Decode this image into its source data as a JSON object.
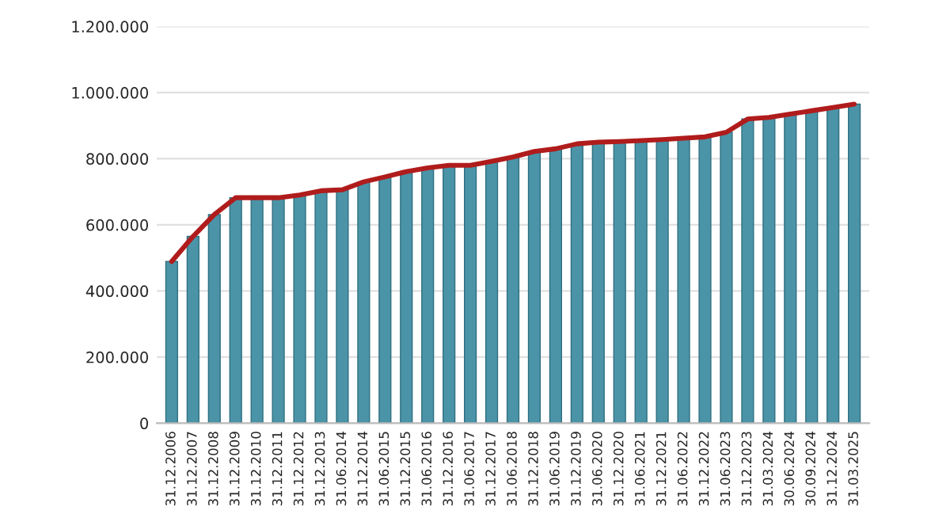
{
  "chart_data": {
    "type": "bar",
    "categories": [
      "31.12.2006",
      "31.12.2007",
      "31.12.2008",
      "31.12.2009",
      "31.12.2010",
      "31.12.2011",
      "31.12.2012",
      "31.12.2013",
      "31.06.2014",
      "31.12.2014",
      "31.06.2015",
      "31.12.2015",
      "31.06.2016",
      "31.12.2016",
      "31.06.2017",
      "31.12.2017",
      "31.06.2018",
      "31.12.2018",
      "31.06.2019",
      "31.12.2019",
      "31.06.2020",
      "31.12.2020",
      "31.06.2021",
      "31.12.2021",
      "31.06.2022",
      "31.12.2022",
      "31.06.2023",
      "31.12.2023",
      "31.03.2024",
      "30.06.2024",
      "30.09.2024",
      "31.12.2024",
      "31.03.2025"
    ],
    "series": [
      {
        "color": "#4b94a8",
        "values": [
          489000,
          565000,
          631000,
          682000,
          682000,
          682000,
          690000,
          703000,
          706000,
          730000,
          745000,
          761000,
          772000,
          780000,
          780000,
          792000,
          805000,
          822000,
          830000,
          845000,
          850000,
          852000,
          855000,
          858000,
          862000,
          866000,
          880000,
          920000,
          925000,
          935000,
          945000,
          955000,
          965000
        ]
      },
      {
        "type": "line",
        "color": "#b01c1c",
        "values": [
          489000,
          565000,
          631000,
          682000,
          682000,
          682000,
          690000,
          703000,
          706000,
          730000,
          745000,
          761000,
          772000,
          780000,
          780000,
          792000,
          805000,
          822000,
          830000,
          845000,
          850000,
          852000,
          855000,
          858000,
          862000,
          866000,
          880000,
          920000,
          925000,
          935000,
          945000,
          955000,
          965000
        ]
      }
    ],
    "ylim": [
      0,
      1200000
    ],
    "yticks": [
      {
        "value": 0,
        "label": "0"
      },
      {
        "value": 200000,
        "label": "200.000"
      },
      {
        "value": 400000,
        "label": "400.000"
      },
      {
        "value": 600000,
        "label": "600.000"
      },
      {
        "value": 800000,
        "label": "800.000"
      },
      {
        "value": 1000000,
        "label": "1.000.000"
      },
      {
        "value": 1200000,
        "label": "1.200.000"
      }
    ],
    "grid": "y",
    "legend": false,
    "marker": "none",
    "line_style": "solid"
  }
}
